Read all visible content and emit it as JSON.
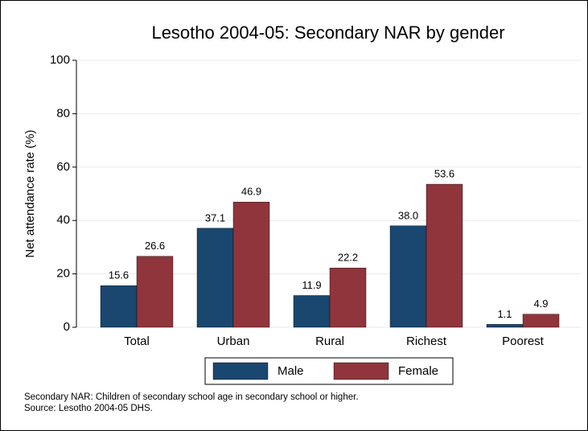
{
  "chart_data": {
    "type": "bar",
    "title": "Lesotho 2004-05: Secondary NAR by gender",
    "y_label": "Net attendance rate (%)",
    "categories": [
      "Total",
      "Urban",
      "Rural",
      "Richest",
      "Poorest"
    ],
    "series": [
      {
        "name": "Male",
        "color": "#1a476f",
        "values": [
          15.6,
          37.1,
          11.9,
          38,
          1.1
        ],
        "value_labels": [
          "15.6",
          "37.1",
          "11.9",
          "38.0",
          "1.1"
        ]
      },
      {
        "name": "Female",
        "color": "#90353b",
        "values": [
          26.6,
          46.9,
          22.2,
          53.6,
          4.9
        ],
        "value_labels": [
          "26.6",
          "46.9",
          "22.2",
          "53.6",
          "4.9"
        ]
      }
    ],
    "ylim": [
      0,
      100
    ],
    "yticks": [
      0,
      20,
      40,
      60,
      80,
      100
    ],
    "grid": true,
    "notes": [
      "Secondary NAR: Children of secondary school age in secondary school or higher.",
      "Source: Lesotho 2004-05 DHS."
    ]
  }
}
